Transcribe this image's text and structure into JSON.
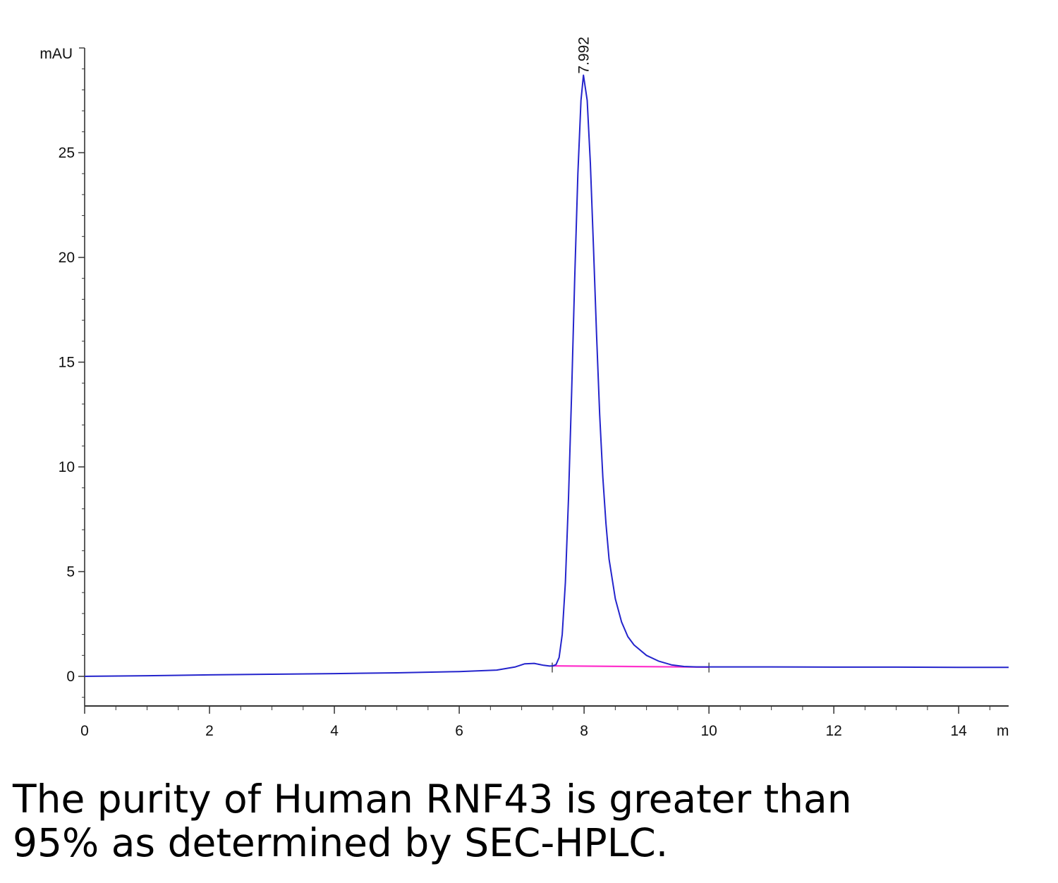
{
  "chart_data": {
    "type": "line",
    "title": "",
    "ylabel": "mAU",
    "xunit": "m",
    "xlim": [
      0,
      14.8
    ],
    "ylim": [
      -1.4,
      30
    ],
    "xticks": [
      0,
      2,
      4,
      6,
      8,
      10,
      12,
      14
    ],
    "yticks": [
      0,
      5,
      10,
      15,
      20,
      25
    ],
    "peak_labels": [
      {
        "text": "7.992",
        "x": 7.992,
        "y": 28.7
      }
    ],
    "series": [
      {
        "color": "#2424cc",
        "x": [
          0,
          1,
          2,
          3,
          4,
          5,
          6,
          6.6,
          6.9,
          7.05,
          7.2,
          7.35,
          7.45,
          7.5,
          7.55,
          7.6,
          7.65,
          7.7,
          7.75,
          7.8,
          7.85,
          7.9,
          7.95,
          7.99,
          8.05,
          8.1,
          8.15,
          8.2,
          8.25,
          8.3,
          8.35,
          8.4,
          8.5,
          8.6,
          8.7,
          8.8,
          9.0,
          9.2,
          9.4,
          9.6,
          9.8,
          10,
          11,
          12,
          13,
          14,
          14.8
        ],
        "y": [
          0.0,
          0.03,
          0.07,
          0.1,
          0.13,
          0.17,
          0.23,
          0.3,
          0.45,
          0.6,
          0.62,
          0.53,
          0.49,
          0.5,
          0.56,
          0.9,
          2.0,
          4.5,
          8.5,
          13.5,
          19.0,
          24.0,
          27.5,
          28.7,
          27.5,
          24.5,
          20.5,
          16.3,
          12.5,
          9.5,
          7.3,
          5.6,
          3.7,
          2.6,
          1.9,
          1.5,
          1.0,
          0.72,
          0.55,
          0.47,
          0.45,
          0.45,
          0.45,
          0.44,
          0.44,
          0.43,
          0.43
        ]
      }
    ],
    "baseline": {
      "color": "#ff33cc",
      "x": [
        7.49,
        10.0
      ],
      "y": [
        0.5,
        0.44
      ]
    },
    "integration_marks_x": [
      7.49,
      10.0
    ],
    "colors": {
      "trace": "#2424cc",
      "baseline": "#ff33cc",
      "axis": "#333333"
    }
  },
  "caption": {
    "line1": "The purity of Human RNF43 is greater than",
    "line2": "95% as determined by SEC-HPLC."
  }
}
